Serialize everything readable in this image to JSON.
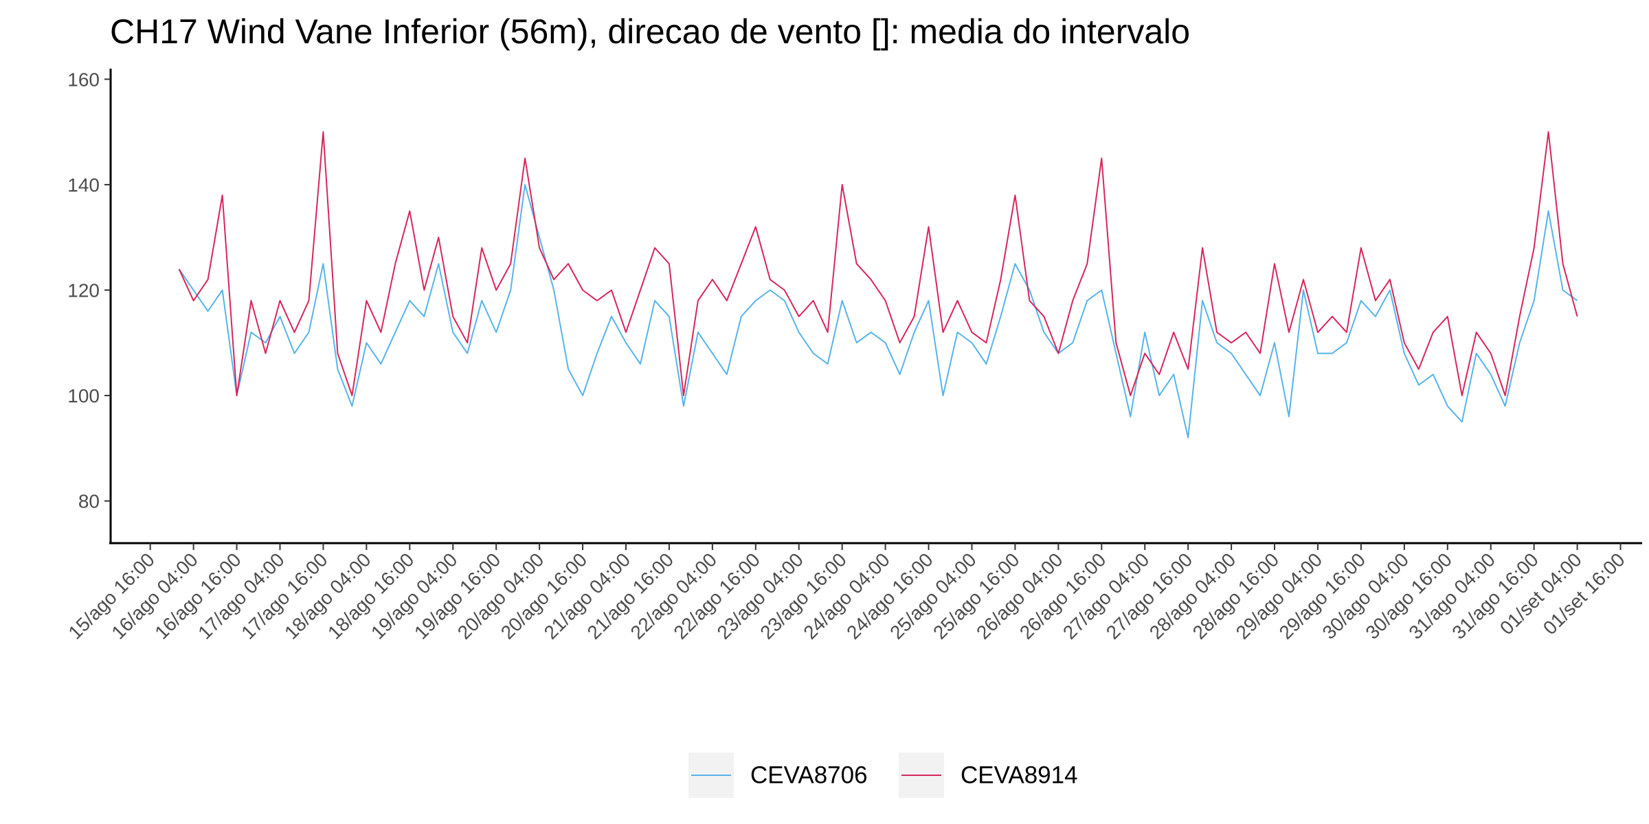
{
  "chart_data": {
    "type": "line",
    "title": "CH17 Wind Vane Inferior (56m), direcao de vento []: media do intervalo",
    "x": [
      "16/ago 00:00",
      "16/ago 04:00",
      "16/ago 08:00",
      "16/ago 12:00",
      "16/ago 16:00",
      "16/ago 20:00",
      "17/ago 00:00",
      "17/ago 04:00",
      "17/ago 08:00",
      "17/ago 12:00",
      "17/ago 16:00",
      "17/ago 20:00",
      "18/ago 00:00",
      "18/ago 04:00",
      "18/ago 08:00",
      "18/ago 12:00",
      "18/ago 16:00",
      "18/ago 20:00",
      "19/ago 00:00",
      "19/ago 04:00",
      "19/ago 08:00",
      "19/ago 12:00",
      "19/ago 16:00",
      "19/ago 20:00",
      "20/ago 00:00",
      "20/ago 04:00",
      "20/ago 08:00",
      "20/ago 12:00",
      "20/ago 16:00",
      "20/ago 20:00",
      "21/ago 00:00",
      "21/ago 04:00",
      "21/ago 08:00",
      "21/ago 12:00",
      "21/ago 16:00",
      "21/ago 20:00",
      "22/ago 00:00",
      "22/ago 04:00",
      "22/ago 08:00",
      "22/ago 12:00",
      "22/ago 16:00",
      "22/ago 20:00",
      "23/ago 00:00",
      "23/ago 04:00",
      "23/ago 08:00",
      "23/ago 12:00",
      "23/ago 16:00",
      "23/ago 20:00",
      "24/ago 00:00",
      "24/ago 04:00",
      "24/ago 08:00",
      "24/ago 12:00",
      "24/ago 16:00",
      "24/ago 20:00",
      "25/ago 00:00",
      "25/ago 04:00",
      "25/ago 08:00",
      "25/ago 12:00",
      "25/ago 16:00",
      "25/ago 20:00",
      "26/ago 00:00",
      "26/ago 04:00",
      "26/ago 08:00",
      "26/ago 12:00",
      "26/ago 16:00",
      "26/ago 20:00",
      "27/ago 00:00",
      "27/ago 04:00",
      "27/ago 08:00",
      "27/ago 12:00",
      "27/ago 16:00",
      "27/ago 20:00",
      "28/ago 00:00",
      "28/ago 04:00",
      "28/ago 08:00",
      "28/ago 12:00",
      "28/ago 16:00",
      "28/ago 20:00",
      "29/ago 00:00",
      "29/ago 04:00",
      "29/ago 08:00",
      "29/ago 12:00",
      "29/ago 16:00",
      "29/ago 20:00",
      "30/ago 00:00",
      "30/ago 04:00",
      "30/ago 08:00",
      "30/ago 12:00",
      "30/ago 16:00",
      "30/ago 20:00",
      "31/ago 00:00",
      "31/ago 04:00",
      "31/ago 08:00",
      "31/ago 12:00",
      "31/ago 16:00",
      "31/ago 20:00",
      "01/set 00:00",
      "01/set 04:00"
    ],
    "series": [
      {
        "name": "CEVA8706",
        "color": "#56B4E9",
        "values": [
          124,
          120,
          116,
          120,
          100,
          112,
          110,
          115,
          108,
          112,
          125,
          105,
          98,
          110,
          106,
          112,
          118,
          115,
          125,
          112,
          108,
          118,
          112,
          120,
          140,
          130,
          120,
          105,
          100,
          108,
          115,
          110,
          106,
          118,
          115,
          98,
          112,
          108,
          104,
          115,
          118,
          120,
          118,
          112,
          108,
          106,
          118,
          110,
          112,
          110,
          104,
          112,
          118,
          100,
          112,
          110,
          106,
          115,
          125,
          120,
          112,
          108,
          110,
          118,
          120,
          108,
          96,
          112,
          100,
          104,
          92,
          118,
          110,
          108,
          104,
          100,
          110,
          96,
          120,
          108,
          108,
          110,
          118,
          115,
          120,
          108,
          102,
          104,
          98,
          95,
          108,
          104,
          98,
          110,
          118,
          135,
          120,
          118
        ]
      },
      {
        "name": "CEVA8914",
        "color": "#D7265B",
        "values": [
          124,
          118,
          122,
          138,
          100,
          118,
          108,
          118,
          112,
          118,
          150,
          108,
          100,
          118,
          112,
          125,
          135,
          120,
          130,
          115,
          110,
          128,
          120,
          125,
          145,
          128,
          122,
          125,
          120,
          118,
          120,
          112,
          120,
          128,
          125,
          100,
          118,
          122,
          118,
          125,
          132,
          122,
          120,
          115,
          118,
          112,
          140,
          125,
          122,
          118,
          110,
          115,
          132,
          112,
          118,
          112,
          110,
          122,
          138,
          118,
          115,
          108,
          118,
          125,
          145,
          110,
          100,
          108,
          104,
          112,
          105,
          128,
          112,
          110,
          112,
          108,
          125,
          112,
          122,
          112,
          115,
          112,
          128,
          118,
          122,
          110,
          105,
          112,
          115,
          100,
          112,
          108,
          100,
          115,
          128,
          150,
          125,
          115
        ]
      }
    ],
    "xlim": [
      "15/ago 05:00",
      "01/set 22:00"
    ],
    "xticks": [
      "15/ago 16:00",
      "16/ago 04:00",
      "16/ago 16:00",
      "17/ago 04:00",
      "17/ago 16:00",
      "18/ago 04:00",
      "18/ago 16:00",
      "19/ago 04:00",
      "19/ago 16:00",
      "20/ago 04:00",
      "20/ago 16:00",
      "21/ago 04:00",
      "21/ago 16:00",
      "22/ago 04:00",
      "22/ago 16:00",
      "23/ago 04:00",
      "23/ago 16:00",
      "24/ago 04:00",
      "24/ago 16:00",
      "25/ago 04:00",
      "25/ago 16:00",
      "26/ago 04:00",
      "26/ago 16:00",
      "27/ago 04:00",
      "27/ago 16:00",
      "28/ago 04:00",
      "28/ago 16:00",
      "29/ago 04:00",
      "29/ago 16:00",
      "30/ago 04:00",
      "30/ago 16:00",
      "31/ago 04:00",
      "31/ago 16:00",
      "01/set 04:00",
      "01/set 16:00"
    ],
    "ylim": [
      72,
      162
    ],
    "yticks": [
      80,
      100,
      120,
      140,
      160
    ],
    "legend": "bottom"
  }
}
